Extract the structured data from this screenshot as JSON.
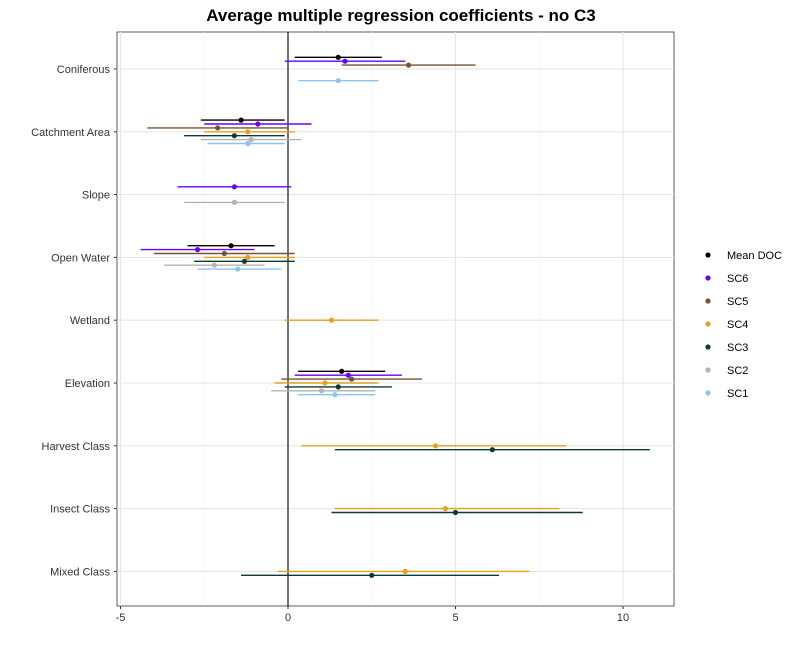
{
  "chart_data": {
    "type": "forest",
    "title": "Average multiple regression coefficients - no C3",
    "xlabel": "",
    "ylabel": "",
    "xlim": [
      -5.0,
      11.5
    ],
    "xticks": [
      -5,
      0,
      5,
      10
    ],
    "xtick_labels": [
      "-5",
      "0",
      "5",
      "10"
    ],
    "categories": [
      "Coniferous",
      "Catchment Area",
      "Slope",
      "Open Water",
      "Wetland",
      "Elevation",
      "Harvest Class",
      "Insect Class",
      "Mixed Class"
    ],
    "grid": true,
    "legend_position": "right",
    "series": [
      {
        "name": "Mean DOC",
        "color": "#000000",
        "points": [
          {
            "category": "Coniferous",
            "estimate": 1.5,
            "low": 0.2,
            "high": 2.8
          },
          {
            "category": "Catchment Area",
            "estimate": -1.4,
            "low": -2.6,
            "high": -0.1
          },
          {
            "category": "Open Water",
            "estimate": -1.7,
            "low": -3.0,
            "high": -0.4
          },
          {
            "category": "Elevation",
            "estimate": 1.6,
            "low": 0.3,
            "high": 2.9
          }
        ]
      },
      {
        "name": "SC6",
        "color": "#6a00ff",
        "points": [
          {
            "category": "Coniferous",
            "estimate": 1.7,
            "low": -0.1,
            "high": 3.5
          },
          {
            "category": "Catchment Area",
            "estimate": -0.9,
            "low": -2.5,
            "high": 0.7
          },
          {
            "category": "Slope",
            "estimate": -1.6,
            "low": -3.3,
            "high": 0.1
          },
          {
            "category": "Open Water",
            "estimate": -2.7,
            "low": -4.4,
            "high": -1.0
          },
          {
            "category": "Elevation",
            "estimate": 1.8,
            "low": 0.2,
            "high": 3.4
          }
        ]
      },
      {
        "name": "SC5",
        "color": "#7a5230",
        "points": [
          {
            "category": "Coniferous",
            "estimate": 3.6,
            "low": 1.6,
            "high": 5.6
          },
          {
            "category": "Catchment Area",
            "estimate": -2.1,
            "low": -4.2,
            "high": 0.0
          },
          {
            "category": "Open Water",
            "estimate": -1.9,
            "low": -4.0,
            "high": 0.2
          },
          {
            "category": "Elevation",
            "estimate": 1.9,
            "low": -0.2,
            "high": 4.0
          }
        ]
      },
      {
        "name": "SC4",
        "color": "#e6a11a",
        "points": [
          {
            "category": "Catchment Area",
            "estimate": -1.2,
            "low": -2.5,
            "high": 0.2
          },
          {
            "category": "Open Water",
            "estimate": -1.2,
            "low": -2.5,
            "high": 0.2
          },
          {
            "category": "Wetland",
            "estimate": 1.3,
            "low": -0.1,
            "high": 2.7
          },
          {
            "category": "Elevation",
            "estimate": 1.1,
            "low": -0.4,
            "high": 2.7
          },
          {
            "category": "Harvest Class",
            "estimate": 4.4,
            "low": 0.4,
            "high": 8.3
          },
          {
            "category": "Insect Class",
            "estimate": 4.7,
            "low": 1.4,
            "high": 8.1
          },
          {
            "category": "Mixed Class",
            "estimate": 3.5,
            "low": -0.3,
            "high": 7.2
          }
        ]
      },
      {
        "name": "SC3",
        "color": "#0b3b34",
        "points": [
          {
            "category": "Catchment Area",
            "estimate": -1.6,
            "low": -3.1,
            "high": -0.1
          },
          {
            "category": "Open Water",
            "estimate": -1.3,
            "low": -2.8,
            "high": 0.2
          },
          {
            "category": "Elevation",
            "estimate": 1.5,
            "low": -0.1,
            "high": 3.1
          },
          {
            "category": "Harvest Class",
            "estimate": 6.1,
            "low": 1.4,
            "high": 10.8
          },
          {
            "category": "Insect Class",
            "estimate": 5.0,
            "low": 1.3,
            "high": 8.8
          },
          {
            "category": "Mixed Class",
            "estimate": 2.5,
            "low": -1.4,
            "high": 6.3
          }
        ]
      },
      {
        "name": "SC2",
        "color": "#b3b3b3",
        "points": [
          {
            "category": "Catchment Area",
            "estimate": -1.1,
            "low": -2.6,
            "high": 0.4
          },
          {
            "category": "Slope",
            "estimate": -1.6,
            "low": -3.1,
            "high": -0.1
          },
          {
            "category": "Open Water",
            "estimate": -2.2,
            "low": -3.7,
            "high": -0.7
          },
          {
            "category": "Elevation",
            "estimate": 1.0,
            "low": -0.5,
            "high": 2.6
          }
        ]
      },
      {
        "name": "SC1",
        "color": "#8fc3ef",
        "points": [
          {
            "category": "Coniferous",
            "estimate": 1.5,
            "low": 0.3,
            "high": 2.7
          },
          {
            "category": "Catchment Area",
            "estimate": -1.2,
            "low": -2.4,
            "high": -0.1
          },
          {
            "category": "Open Water",
            "estimate": -1.5,
            "low": -2.7,
            "high": -0.2
          },
          {
            "category": "Elevation",
            "estimate": 1.4,
            "low": 0.3,
            "high": 2.6
          }
        ]
      }
    ]
  }
}
